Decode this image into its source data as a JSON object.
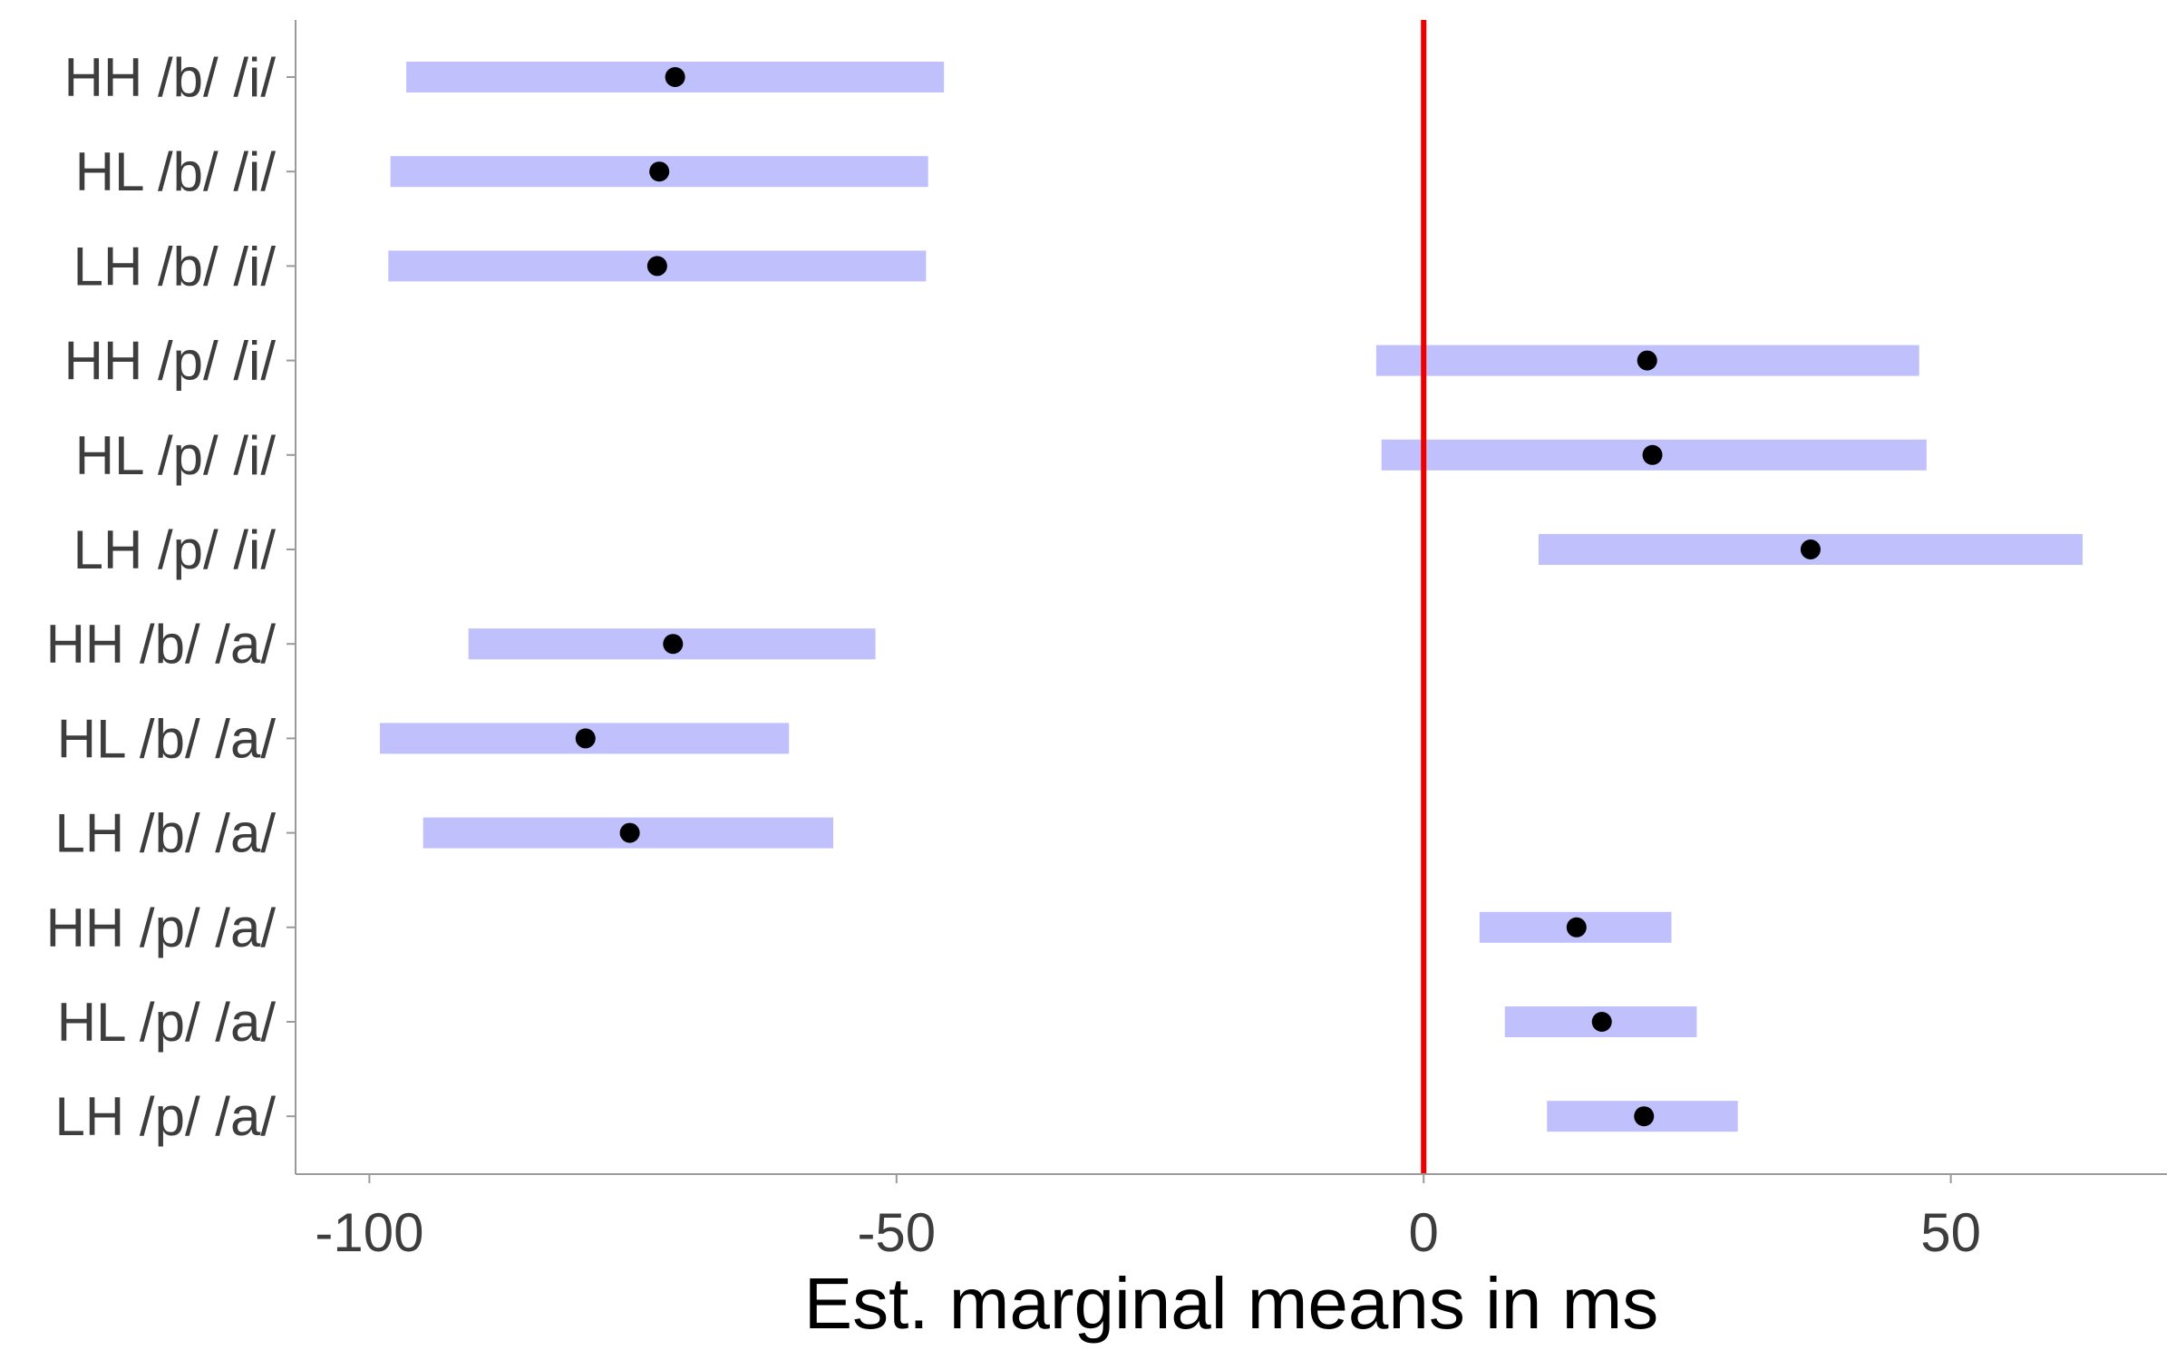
{
  "chart_data": {
    "type": "interval",
    "xlabel": "Est. marginal means in ms",
    "ylabel": "",
    "xlim": [
      -107,
      70.5
    ],
    "xticks": [
      -100,
      -50,
      0,
      50
    ],
    "xtick_labels": [
      "-100",
      "-50",
      "0",
      "50"
    ],
    "reference_line": {
      "x": 0,
      "color": "#ee0000"
    },
    "grid": false,
    "colors": {
      "interval": "#c0c0fc",
      "point": "#000000",
      "axis": "#9a9a9a"
    },
    "rows": [
      {
        "label": "HH /b/ /i/",
        "mean": -71.0,
        "lower": -96.5,
        "upper": -45.5
      },
      {
        "label": "HL /b/ /i/",
        "mean": -72.5,
        "lower": -98.0,
        "upper": -47.0
      },
      {
        "label": "LH /b/ /i/",
        "mean": -72.7,
        "lower": -98.2,
        "upper": -47.2
      },
      {
        "label": "HH /p/ /i/",
        "mean": 21.2,
        "lower": -4.5,
        "upper": 47.0
      },
      {
        "label": "HL /p/ /i/",
        "mean": 21.7,
        "lower": -4.0,
        "upper": 47.7
      },
      {
        "label": "LH /p/ /i/",
        "mean": 36.7,
        "lower": 10.9,
        "upper": 62.5
      },
      {
        "label": "HH /b/ /a/",
        "mean": -71.2,
        "lower": -90.6,
        "upper": -52.0
      },
      {
        "label": "HL /b/ /a/",
        "mean": -79.5,
        "lower": -99.0,
        "upper": -60.2
      },
      {
        "label": "LH /b/ /a/",
        "mean": -75.3,
        "lower": -94.9,
        "upper": -56.0
      },
      {
        "label": "HH /p/ /a/",
        "mean": 14.5,
        "lower": 5.3,
        "upper": 23.5
      },
      {
        "label": "HL /p/ /a/",
        "mean": 16.9,
        "lower": 7.7,
        "upper": 25.9
      },
      {
        "label": "LH /p/ /a/",
        "mean": 20.9,
        "lower": 11.7,
        "upper": 29.8
      }
    ]
  }
}
